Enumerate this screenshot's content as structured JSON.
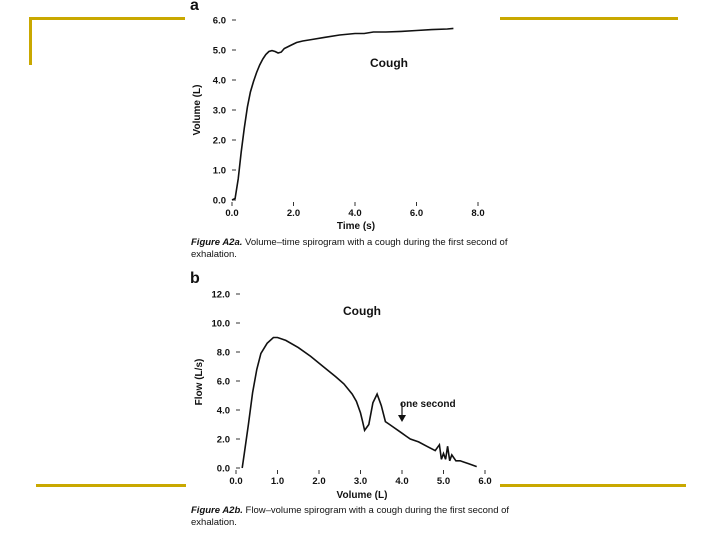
{
  "decoration": {
    "accent_color": "#c9a800"
  },
  "chart_data": [
    {
      "type": "line",
      "panel_letter": "a",
      "title": "",
      "annotation": "Cough",
      "xlabel": "Time (s)",
      "ylabel": "Volume (L)",
      "xlim": [
        0,
        8
      ],
      "ylim": [
        0,
        6
      ],
      "x_ticks": [
        "0.0",
        "2.0",
        "4.0",
        "6.0",
        "8.0"
      ],
      "x_tick_values": [
        0,
        2,
        4,
        6,
        8
      ],
      "y_ticks": [
        "0.0",
        "1.0",
        "2.0",
        "3.0",
        "4.0",
        "5.0",
        "6.0"
      ],
      "y_tick_values": [
        0,
        1,
        2,
        3,
        4,
        5,
        6
      ],
      "caption_label": "Figure A2a.",
      "caption_text": "Volume–time spirogram with a cough during the first second of exhalation.",
      "series": [
        {
          "name": "volume",
          "x": [
            0.0,
            0.1,
            0.2,
            0.3,
            0.4,
            0.5,
            0.6,
            0.7,
            0.8,
            0.9,
            1.0,
            1.1,
            1.2,
            1.3,
            1.4,
            1.5,
            1.6,
            1.7,
            1.8,
            1.9,
            2.0,
            2.1,
            2.3,
            2.6,
            3.0,
            3.5,
            4.0,
            4.3,
            4.6,
            5.0,
            5.5,
            6.0,
            6.5,
            7.0,
            7.2
          ],
          "y": [
            0.0,
            0.05,
            0.7,
            1.6,
            2.4,
            3.1,
            3.6,
            3.95,
            4.25,
            4.5,
            4.7,
            4.85,
            4.95,
            4.98,
            4.95,
            4.9,
            4.93,
            5.05,
            5.1,
            5.15,
            5.2,
            5.25,
            5.3,
            5.35,
            5.42,
            5.5,
            5.55,
            5.55,
            5.6,
            5.6,
            5.62,
            5.65,
            5.68,
            5.7,
            5.72
          ]
        }
      ]
    },
    {
      "type": "line",
      "panel_letter": "b",
      "title": "",
      "annotation": "Cough",
      "arrow_annotation": "one second",
      "arrow_at": [
        4.0,
        3.1
      ],
      "xlabel": "Volume (L)",
      "ylabel": "Flow (L/s)",
      "xlim": [
        0,
        6
      ],
      "ylim": [
        0,
        12
      ],
      "x_ticks": [
        "0.0",
        "1.0",
        "2.0",
        "3.0",
        "4.0",
        "5.0",
        "6.0"
      ],
      "x_tick_values": [
        0,
        1,
        2,
        3,
        4,
        5,
        6
      ],
      "y_ticks": [
        "0.0",
        "2.0",
        "4.0",
        "6.0",
        "8.0",
        "10.0",
        "12.0"
      ],
      "y_tick_values": [
        0,
        2,
        4,
        6,
        8,
        10,
        12
      ],
      "caption_label": "Figure A2b.",
      "caption_text": "Flow–volume spirogram with a cough during the first second of exhalation.",
      "series": [
        {
          "name": "flow",
          "x": [
            0.15,
            0.2,
            0.3,
            0.4,
            0.5,
            0.6,
            0.75,
            0.9,
            1.0,
            1.2,
            1.5,
            1.8,
            2.1,
            2.4,
            2.6,
            2.8,
            2.9,
            3.0,
            3.05,
            3.1,
            3.2,
            3.3,
            3.4,
            3.5,
            3.6,
            3.7,
            3.8,
            3.9,
            4.0,
            4.1,
            4.2,
            4.4,
            4.6,
            4.8,
            4.9,
            4.95,
            5.0,
            5.05,
            5.1,
            5.15,
            5.2,
            5.3,
            5.4,
            5.5,
            5.6,
            5.7,
            5.8
          ],
          "y": [
            0.0,
            1.0,
            3.0,
            5.2,
            6.8,
            7.9,
            8.6,
            9.0,
            9.0,
            8.8,
            8.3,
            7.7,
            7.0,
            6.3,
            5.8,
            5.1,
            4.6,
            3.8,
            3.2,
            2.6,
            3.0,
            4.5,
            5.1,
            4.3,
            3.2,
            3.0,
            2.8,
            2.6,
            2.4,
            2.2,
            2.0,
            1.8,
            1.5,
            1.2,
            1.6,
            0.6,
            1.0,
            0.6,
            1.5,
            0.5,
            0.9,
            0.5,
            0.5,
            0.4,
            0.3,
            0.2,
            0.1
          ]
        }
      ]
    }
  ]
}
